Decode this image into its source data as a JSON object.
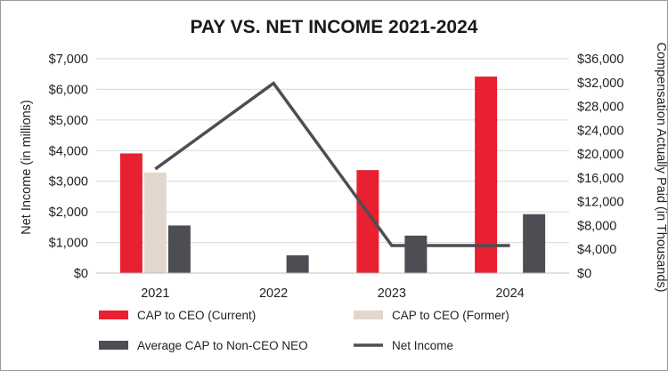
{
  "chart_data": {
    "type": "bar",
    "title": "PAY VS. NET INCOME 2021-2024",
    "categories": [
      "2021",
      "2022",
      "2023",
      "2024"
    ],
    "xlabel": "",
    "ylabel_left": "Net Income (in millions)",
    "ylabel_right": "Compensation Actually Paid (in Thousands)",
    "ylim_left": [
      0,
      7000
    ],
    "ylim_right": [
      0,
      36000
    ],
    "left_ticks": [
      "$0",
      "$1,000",
      "$2,000",
      "$3,000",
      "$4,000",
      "$5,000",
      "$6,000",
      "$7,000"
    ],
    "right_ticks": [
      "$0",
      "$4,000",
      "$8,000",
      "$12,000",
      "$16,000",
      "$20,000",
      "$24,000",
      "$28,000",
      "$32,000",
      "$36,000"
    ],
    "grid": true,
    "legend_position": "bottom",
    "series": [
      {
        "name": "CAP to CEO (Current)",
        "kind": "bar",
        "axis": "right",
        "color": "#e8202f",
        "values": [
          20100,
          null,
          17300,
          33000
        ]
      },
      {
        "name": "CAP to CEO (Former)",
        "kind": "bar",
        "axis": "right",
        "color": "#e3d6cd",
        "values": [
          16900,
          null,
          null,
          null
        ]
      },
      {
        "name": "Average CAP to Non-CEO NEO",
        "kind": "bar",
        "axis": "right",
        "color": "#4d4e53",
        "values": [
          8000,
          3000,
          6300,
          9900
        ]
      },
      {
        "name": "Net Income",
        "kind": "line",
        "axis": "left",
        "color": "#4d4e53",
        "values": [
          3400,
          6200,
          900,
          900
        ]
      }
    ]
  }
}
